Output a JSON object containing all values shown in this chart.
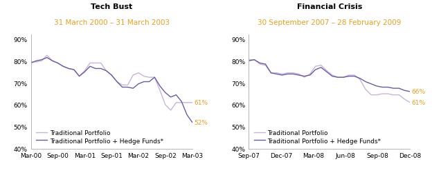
{
  "chart1": {
    "title": "Tech Bust",
    "subtitle": "31 March 2000 – 31 March 2003",
    "xticks": [
      "Mar-00",
      "Sep-00",
      "Mar-01",
      "Sep-01",
      "Mar-02",
      "Sep-02",
      "Mar-03"
    ],
    "traditional": [
      79.5,
      79.5,
      80.0,
      82.5,
      80.0,
      79.0,
      77.5,
      76.5,
      76.0,
      73.0,
      75.5,
      79.0,
      79.0,
      79.0,
      75.5,
      73.5,
      70.5,
      69.0,
      69.0,
      73.5,
      74.5,
      73.0,
      72.5,
      72.5,
      66.5,
      60.0,
      57.5,
      61.0,
      61.0,
      61.0,
      61.0
    ],
    "hedge": [
      79.0,
      80.0,
      80.5,
      81.5,
      80.0,
      79.0,
      77.5,
      76.5,
      76.0,
      73.0,
      75.0,
      77.5,
      76.5,
      76.5,
      75.5,
      73.5,
      70.5,
      68.0,
      68.0,
      67.5,
      69.5,
      70.5,
      70.5,
      72.5,
      68.5,
      65.5,
      63.5,
      64.5,
      61.5,
      55.5,
      52.0
    ],
    "end_label_trad": "61%",
    "end_label_hedge": "52%",
    "ylim": [
      40,
      92
    ],
    "yticks": [
      40,
      50,
      60,
      70,
      80,
      90
    ]
  },
  "chart2": {
    "title": "Financial Crisis",
    "subtitle": "30 September 2007 – 28 February 2009",
    "xticks": [
      "Sep-07",
      "Dec-07",
      "Mar-08",
      "Jun-08",
      "Sep-08",
      "Dec-08"
    ],
    "traditional": [
      80.5,
      80.5,
      78.5,
      78.0,
      74.5,
      74.5,
      74.0,
      74.5,
      74.5,
      74.0,
      72.5,
      74.0,
      77.5,
      78.0,
      75.5,
      73.5,
      72.5,
      72.5,
      73.5,
      73.5,
      71.5,
      67.0,
      64.5,
      64.5,
      65.0,
      65.0,
      64.5,
      64.5,
      62.5,
      61.0
    ],
    "hedge": [
      80.0,
      80.5,
      79.0,
      78.5,
      74.5,
      74.0,
      73.5,
      74.0,
      74.0,
      73.5,
      73.0,
      73.5,
      76.0,
      77.0,
      75.0,
      73.0,
      72.5,
      72.5,
      73.0,
      73.0,
      72.0,
      70.5,
      69.5,
      68.5,
      68.0,
      68.0,
      67.5,
      67.5,
      66.5,
      66.0
    ],
    "end_label_trad": "61%",
    "end_label_hedge": "66%",
    "ylim": [
      40,
      92
    ],
    "yticks": [
      40,
      50,
      60,
      70,
      80,
      90
    ]
  },
  "color_traditional": "#c8b4d8",
  "color_hedge": "#6a5aaa",
  "label_color": "#e8a020",
  "subtitle_color": "#e8a020",
  "legend_traditional": "Traditional Portfolio",
  "legend_hedge": "Traditional Portfolio + Hedge Funds*",
  "title_fontsize": 8,
  "subtitle_fontsize": 7.5,
  "tick_fontsize": 6.5,
  "legend_fontsize": 6.5
}
